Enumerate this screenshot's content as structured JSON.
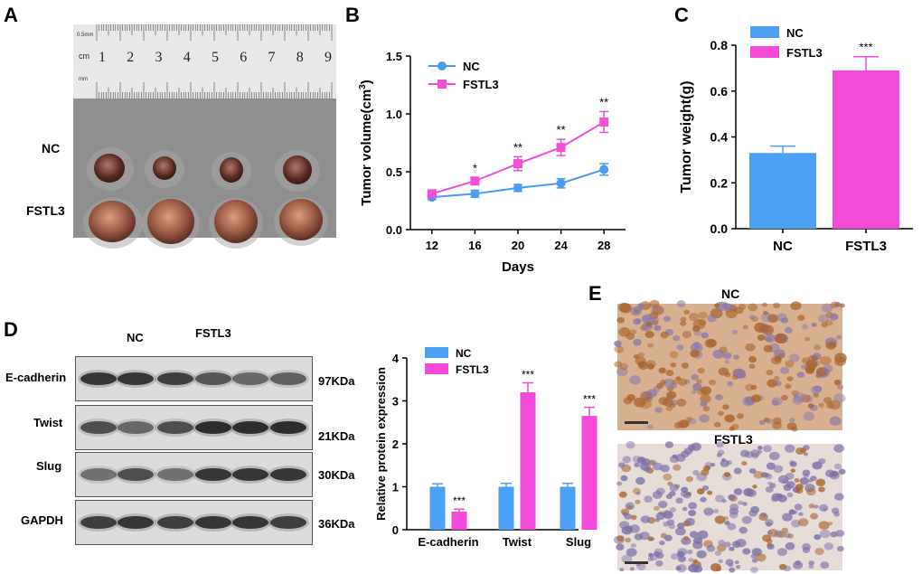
{
  "panels": {
    "a": "A",
    "b": "B",
    "c": "C",
    "d": "D",
    "e": "E"
  },
  "panel_a": {
    "ruler_units": "cm",
    "ruler_small_text": "0.5mm",
    "ruler_mm_text": "mm",
    "ruler_numbers": [
      "1",
      "2",
      "3",
      "4",
      "5",
      "6",
      "7",
      "8",
      "9"
    ],
    "row_labels": [
      "NC",
      "FSTL3"
    ]
  },
  "panel_d_blot": {
    "group_labels": [
      "NC",
      "FSTL3"
    ],
    "rows": [
      {
        "name": "E-cadherin",
        "kda": "97KDa"
      },
      {
        "name": "Twist",
        "kda": "21KDa"
      },
      {
        "name": "Slug",
        "kda": "30KDa"
      },
      {
        "name": "GAPDH",
        "kda": "36KDa"
      }
    ]
  },
  "panel_e": {
    "titles": [
      "NC",
      "FSTL3"
    ]
  },
  "colors": {
    "nc": "#4a9df0",
    "fstl3": "#f04fd6",
    "nc_bar": "#4da1f5",
    "fstl3_bar": "#f24bd8"
  },
  "chart_data": [
    {
      "id": "B",
      "type": "line",
      "xlabel": "Days",
      "ylabel": "Tumor volume(cm",
      "ylabel_sup": "3",
      "ylabel_end": ")",
      "x": [
        12,
        16,
        20,
        24,
        28
      ],
      "xlim": [
        10,
        30
      ],
      "ylim": [
        0,
        1.5
      ],
      "yticks": [
        "0.0",
        "0.5",
        "1.0",
        "1.5"
      ],
      "legend": [
        "NC",
        "FSTL3"
      ],
      "series": [
        {
          "name": "NC",
          "values": [
            0.28,
            0.31,
            0.36,
            0.4,
            0.52
          ],
          "errors": [
            0.02,
            0.03,
            0.03,
            0.04,
            0.05
          ]
        },
        {
          "name": "FSTL3",
          "values": [
            0.31,
            0.42,
            0.57,
            0.71,
            0.93
          ],
          "errors": [
            0.02,
            0.03,
            0.06,
            0.07,
            0.09
          ]
        }
      ],
      "annotations": [
        "",
        "*",
        "**",
        "**",
        "**"
      ]
    },
    {
      "id": "C",
      "type": "bar",
      "ylabel": "Tumor weight(g)",
      "categories": [
        "NC",
        "FSTL3"
      ],
      "values": [
        0.33,
        0.69
      ],
      "errors": [
        0.03,
        0.06
      ],
      "ylim": [
        0,
        0.8
      ],
      "yticks": [
        "0.0",
        "0.2",
        "0.4",
        "0.6",
        "0.8"
      ],
      "legend": [
        "NC",
        "FSTL3"
      ],
      "annotation": "***"
    },
    {
      "id": "D",
      "type": "bar",
      "ylabel": "Relative protein expression",
      "categories": [
        "E-cadherin",
        "Twist",
        "Slug"
      ],
      "ylim": [
        0,
        4
      ],
      "yticks": [
        "0",
        "1",
        "2",
        "3",
        "4"
      ],
      "legend": [
        "NC",
        "FSTL3"
      ],
      "series": [
        {
          "name": "NC",
          "values": [
            1.0,
            1.0,
            1.0
          ],
          "errors": [
            0.07,
            0.08,
            0.08
          ]
        },
        {
          "name": "FSTL3",
          "values": [
            0.42,
            3.2,
            2.65
          ],
          "errors": [
            0.06,
            0.22,
            0.2
          ]
        }
      ],
      "annotations": [
        "***",
        "***",
        "***"
      ]
    }
  ]
}
